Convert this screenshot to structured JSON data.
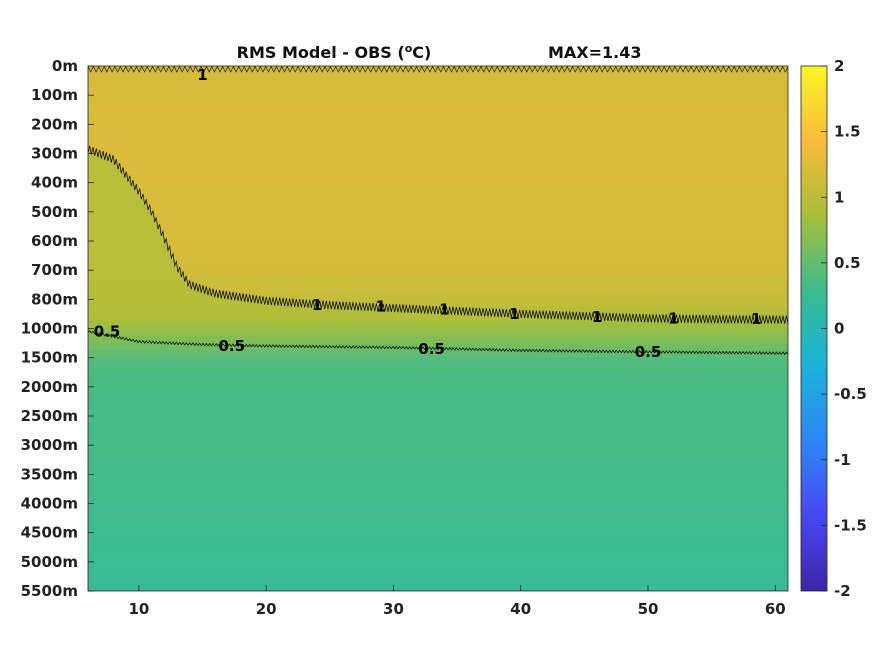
{
  "chart_data": {
    "type": "heatmap",
    "title": "RMS Model - OBS (",
    "title_unit_sup": "o",
    "title_unit_end": "C)",
    "max_label": "MAX=1.43",
    "xlabel": "",
    "ylabel": "",
    "x_ticks": [
      10,
      20,
      30,
      40,
      50,
      60
    ],
    "xlim": [
      6,
      61
    ],
    "y_tick_labels": [
      "0m",
      "100m",
      "200m",
      "300m",
      "400m",
      "500m",
      "600m",
      "700m",
      "800m",
      "1000m",
      "1500m",
      "2000m",
      "2500m",
      "3000m",
      "3500m",
      "4000m",
      "4500m",
      "5000m",
      "5500m"
    ],
    "colorbar": {
      "range": [
        -2,
        2
      ],
      "ticks": [
        "2",
        "1.5",
        "1",
        "0.5",
        "0",
        "-0.5",
        "-1",
        "-1.5",
        "-2"
      ],
      "colors": [
        "#3e26a8",
        "#4748f2",
        "#2e87f7",
        "#1ab2d6",
        "#3bbb8e",
        "#a5be38",
        "#f9bb3a",
        "#f9f624"
      ]
    },
    "depth_profile": [
      {
        "depth": "0m",
        "rms": 1.18
      },
      {
        "depth": "100m",
        "rms": 1.2
      },
      {
        "depth": "200m",
        "rms": 1.22
      },
      {
        "depth": "300m",
        "rms": 1.22
      },
      {
        "depth": "400m",
        "rms": 1.2
      },
      {
        "depth": "500m",
        "rms": 1.2
      },
      {
        "depth": "600m",
        "rms": 1.18
      },
      {
        "depth": "700m",
        "rms": 1.15
      },
      {
        "depth": "800m",
        "rms": 1.05
      },
      {
        "depth": "1000m",
        "rms": 0.75
      },
      {
        "depth": "1500m",
        "rms": 0.4
      },
      {
        "depth": "2000m",
        "rms": 0.35
      },
      {
        "depth": "2500m",
        "rms": 0.33
      },
      {
        "depth": "3000m",
        "rms": 0.33
      },
      {
        "depth": "3500m",
        "rms": 0.32
      },
      {
        "depth": "4000m",
        "rms": 0.3
      },
      {
        "depth": "4500m",
        "rms": 0.28
      },
      {
        "depth": "5000m",
        "rms": 0.26
      },
      {
        "depth": "5500m",
        "rms": 0.22
      }
    ],
    "contour_1": [
      [
        6,
        2.85
      ],
      [
        8,
        3.2
      ],
      [
        10,
        4.3
      ],
      [
        11,
        5.0
      ],
      [
        12,
        5.9
      ],
      [
        13,
        6.9
      ],
      [
        14,
        7.5
      ],
      [
        16,
        7.8
      ],
      [
        20,
        8.05
      ],
      [
        25,
        8.2
      ],
      [
        30,
        8.3
      ],
      [
        40,
        8.5
      ],
      [
        50,
        8.65
      ],
      [
        55,
        8.68
      ],
      [
        61,
        8.7
      ]
    ],
    "contour_05": [
      [
        6,
        9.1
      ],
      [
        10,
        9.45
      ],
      [
        15,
        9.55
      ],
      [
        20,
        9.6
      ],
      [
        30,
        9.65
      ],
      [
        40,
        9.75
      ],
      [
        50,
        9.8
      ],
      [
        61,
        9.85
      ]
    ],
    "contour_labels": [
      {
        "text": "0.5",
        "x": 7.5,
        "y": 9.1
      },
      {
        "text": "0.5",
        "x": 17.3,
        "y": 9.6
      },
      {
        "text": "0.5",
        "x": 33.0,
        "y": 9.7
      },
      {
        "text": "0.5",
        "x": 50.0,
        "y": 9.8
      },
      {
        "text": "1",
        "x": 15.0,
        "y": 0.3
      },
      {
        "text": "1",
        "x": 24.0,
        "y": 8.2
      },
      {
        "text": "1",
        "x": 29.0,
        "y": 8.25
      },
      {
        "text": "1",
        "x": 34.0,
        "y": 8.35
      },
      {
        "text": "1",
        "x": 39.5,
        "y": 8.5
      },
      {
        "text": "1",
        "x": 46.0,
        "y": 8.6
      },
      {
        "text": "1",
        "x": 52.0,
        "y": 8.65
      },
      {
        "text": "1",
        "x": 58.5,
        "y": 8.68
      }
    ]
  }
}
